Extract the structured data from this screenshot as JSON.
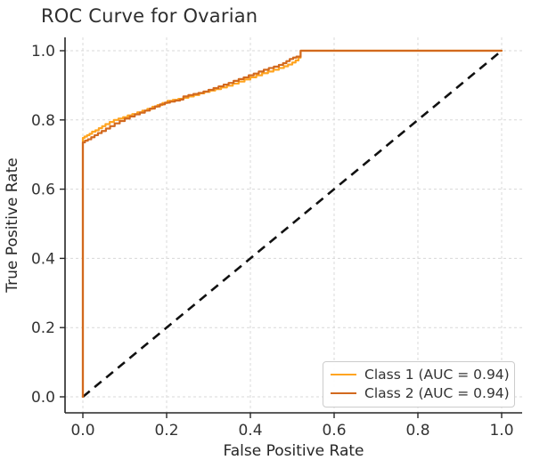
{
  "title": "ROC Curve for Ovarian",
  "colors": {
    "class1": "#FFA420",
    "class2": "#D2691E",
    "diagonal": "#111111",
    "grid": "#d8d8d8",
    "spine": "#262626",
    "tick_text": "#333333"
  },
  "legend": {
    "position": "lower right",
    "entries": [
      "Class 1 (AUC = 0.94)",
      "Class 2 (AUC = 0.94)"
    ]
  },
  "chart_data": {
    "type": "line",
    "title": "ROC Curve for Ovarian",
    "xlabel": "False Positive Rate",
    "ylabel": "True Positive Rate",
    "xlim": [
      -0.04,
      1.05
    ],
    "ylim": [
      -0.04,
      1.05
    ],
    "grid": true,
    "grid_style": "dashed",
    "xticks": [
      0.0,
      0.2,
      0.4,
      0.6,
      0.8,
      1.0
    ],
    "xtick_labels": [
      "0.0",
      "0.2",
      "0.4",
      "0.6",
      "0.8",
      "1.0"
    ],
    "yticks": [
      0.0,
      0.2,
      0.4,
      0.6,
      0.8,
      1.0
    ],
    "ytick_labels": [
      "0.0",
      "0.2",
      "0.4",
      "0.6",
      "0.8",
      "1.0"
    ],
    "legend_position": "lower right",
    "diagonal_reference": {
      "style": "dashed",
      "color": "#111111",
      "from": [
        0,
        0
      ],
      "to": [
        1,
        1
      ]
    },
    "series": [
      {
        "name": "Class 1 (AUC = 0.94)",
        "auc": 0.94,
        "color": "#FFA420",
        "points": [
          [
            0,
            0
          ],
          [
            0,
            0.748
          ],
          [
            0.004,
            0.752
          ],
          [
            0.01,
            0.756
          ],
          [
            0.016,
            0.76
          ],
          [
            0.022,
            0.766
          ],
          [
            0.03,
            0.77
          ],
          [
            0.038,
            0.776
          ],
          [
            0.046,
            0.782
          ],
          [
            0.054,
            0.788
          ],
          [
            0.064,
            0.794
          ],
          [
            0.074,
            0.8
          ],
          [
            0.085,
            0.804
          ],
          [
            0.096,
            0.808
          ],
          [
            0.107,
            0.813
          ],
          [
            0.118,
            0.817
          ],
          [
            0.13,
            0.822
          ],
          [
            0.142,
            0.827
          ],
          [
            0.154,
            0.832
          ],
          [
            0.166,
            0.838
          ],
          [
            0.178,
            0.843
          ],
          [
            0.19,
            0.849
          ],
          [
            0.202,
            0.855
          ],
          [
            0.215,
            0.858
          ],
          [
            0.228,
            0.861
          ],
          [
            0.24,
            0.864
          ],
          [
            0.252,
            0.868
          ],
          [
            0.265,
            0.872
          ],
          [
            0.278,
            0.877
          ],
          [
            0.29,
            0.881
          ],
          [
            0.303,
            0.885
          ],
          [
            0.316,
            0.889
          ],
          [
            0.33,
            0.894
          ],
          [
            0.344,
            0.899
          ],
          [
            0.358,
            0.905
          ],
          [
            0.372,
            0.911
          ],
          [
            0.386,
            0.917
          ],
          [
            0.4,
            0.923
          ],
          [
            0.414,
            0.929
          ],
          [
            0.428,
            0.935
          ],
          [
            0.442,
            0.94
          ],
          [
            0.455,
            0.945
          ],
          [
            0.468,
            0.95
          ],
          [
            0.48,
            0.955
          ],
          [
            0.49,
            0.96
          ],
          [
            0.5,
            0.966
          ],
          [
            0.508,
            0.972
          ],
          [
            0.515,
            0.98
          ],
          [
            0.52,
            1
          ],
          [
            1,
            1
          ]
        ]
      },
      {
        "name": "Class 2 (AUC = 0.94)",
        "auc": 0.94,
        "color": "#D2691E",
        "points": [
          [
            0,
            0
          ],
          [
            0,
            0.735
          ],
          [
            0.005,
            0.74
          ],
          [
            0.012,
            0.744
          ],
          [
            0.02,
            0.75
          ],
          [
            0.028,
            0.756
          ],
          [
            0.036,
            0.762
          ],
          [
            0.045,
            0.768
          ],
          [
            0.055,
            0.775
          ],
          [
            0.065,
            0.782
          ],
          [
            0.076,
            0.79
          ],
          [
            0.088,
            0.797
          ],
          [
            0.1,
            0.804
          ],
          [
            0.112,
            0.81
          ],
          [
            0.124,
            0.816
          ],
          [
            0.136,
            0.821
          ],
          [
            0.148,
            0.827
          ],
          [
            0.16,
            0.833
          ],
          [
            0.172,
            0.839
          ],
          [
            0.184,
            0.845
          ],
          [
            0.196,
            0.85
          ],
          [
            0.208,
            0.853
          ],
          [
            0.22,
            0.856
          ],
          [
            0.232,
            0.859
          ],
          [
            0.24,
            0.868
          ],
          [
            0.252,
            0.872
          ],
          [
            0.264,
            0.875
          ],
          [
            0.276,
            0.878
          ],
          [
            0.288,
            0.882
          ],
          [
            0.3,
            0.887
          ],
          [
            0.312,
            0.892
          ],
          [
            0.324,
            0.897
          ],
          [
            0.336,
            0.902
          ],
          [
            0.348,
            0.907
          ],
          [
            0.36,
            0.913
          ],
          [
            0.372,
            0.918
          ],
          [
            0.384,
            0.923
          ],
          [
            0.396,
            0.929
          ],
          [
            0.408,
            0.934
          ],
          [
            0.42,
            0.94
          ],
          [
            0.432,
            0.945
          ],
          [
            0.444,
            0.95
          ],
          [
            0.456,
            0.954
          ],
          [
            0.468,
            0.959
          ],
          [
            0.478,
            0.964
          ],
          [
            0.486,
            0.97
          ],
          [
            0.494,
            0.976
          ],
          [
            0.502,
            0.98
          ],
          [
            0.51,
            0.983
          ],
          [
            0.52,
            1
          ],
          [
            1,
            1
          ]
        ]
      }
    ]
  }
}
